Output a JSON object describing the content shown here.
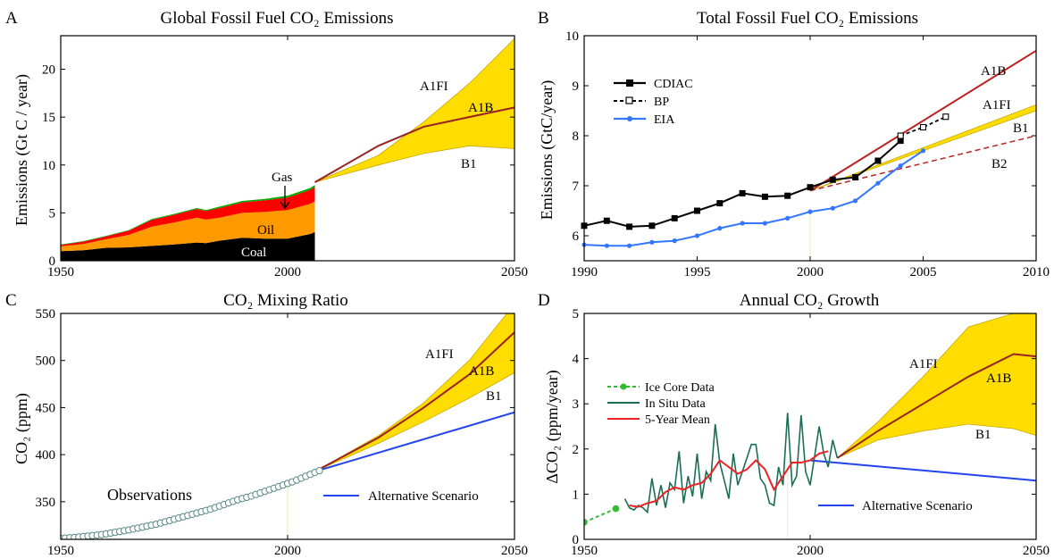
{
  "chart_data": [
    {
      "id": "A",
      "type": "area",
      "panel_letter": "A",
      "title": "Global Fossil Fuel CO₂ Emissions",
      "xlabel": "",
      "ylabel": "Emissions (Gt C / year)",
      "xlim": [
        1950,
        2050
      ],
      "ylim": [
        0,
        23.5
      ],
      "xticks": [
        1950,
        2000,
        2050
      ],
      "yticks": [
        0,
        5,
        10,
        15,
        20
      ],
      "x": [
        1950,
        1955,
        1960,
        1965,
        1970,
        1975,
        1980,
        1982,
        1985,
        1990,
        1995,
        2000,
        2005,
        2006
      ],
      "series": [
        {
          "name": "Coal",
          "color": "#000000",
          "values": [
            1.0,
            1.1,
            1.35,
            1.4,
            1.55,
            1.7,
            1.9,
            1.85,
            2.1,
            2.4,
            2.3,
            2.3,
            2.8,
            3.0
          ]
        },
        {
          "name": "Oil",
          "color": "#ff9900",
          "values": [
            0.5,
            0.65,
            0.9,
            1.3,
            2.0,
            2.3,
            2.6,
            2.45,
            2.4,
            2.6,
            2.8,
            3.0,
            3.15,
            3.2
          ]
        },
        {
          "name": "Gas",
          "color": "#ff0000",
          "values": [
            0.15,
            0.25,
            0.3,
            0.45,
            0.7,
            0.8,
            0.9,
            0.9,
            1.0,
            1.1,
            1.2,
            1.3,
            1.45,
            1.5
          ]
        },
        {
          "name": "",
          "color": "#00aa00",
          "values": [
            0.05,
            0.05,
            0.05,
            0.05,
            0.1,
            0.1,
            0.1,
            0.1,
            0.15,
            0.15,
            0.15,
            0.2,
            0.2,
            0.2
          ]
        }
      ],
      "scenarios": {
        "x": [
          2006,
          2020,
          2030,
          2040,
          2050
        ],
        "A1FI": [
          8.2,
          11.0,
          14.5,
          18.5,
          23.2
        ],
        "A1B": [
          8.2,
          12.0,
          14.0,
          15.0,
          16.0
        ],
        "B1": [
          8.2,
          10.0,
          11.2,
          12.0,
          11.7
        ]
      },
      "labels": {
        "a1fi": "A1FI",
        "a1b": "A1B",
        "b1": "B1",
        "gas": "Gas",
        "oil": "Oil",
        "coal": "Coal"
      }
    },
    {
      "id": "B",
      "type": "line",
      "panel_letter": "B",
      "title": "Total Fossil Fuel CO₂ Emissions",
      "xlabel": "",
      "ylabel": "Emissions (GtC/year)",
      "xlim": [
        1990,
        2010
      ],
      "ylim": [
        5.5,
        10
      ],
      "xticks": [
        1990,
        1995,
        2000,
        2005,
        2010
      ],
      "yticks": [
        6,
        7,
        8,
        9,
        10
      ],
      "series": [
        {
          "name": "CDIAC",
          "color": "#000000",
          "x": [
            1990,
            1991,
            1992,
            1993,
            1994,
            1995,
            1996,
            1997,
            1998,
            1999,
            2000,
            2001,
            2002,
            2003,
            2004
          ],
          "y": [
            6.2,
            6.3,
            6.18,
            6.2,
            6.35,
            6.5,
            6.65,
            6.85,
            6.78,
            6.8,
            6.97,
            7.12,
            7.17,
            7.5,
            7.9
          ]
        },
        {
          "name": "BP",
          "color": "#000000",
          "x": [
            2004,
            2005,
            2006
          ],
          "y": [
            8.0,
            8.17,
            8.38
          ]
        },
        {
          "name": "EIA",
          "color": "#3377ff",
          "x": [
            1990,
            1991,
            1992,
            1993,
            1994,
            1995,
            1996,
            1997,
            1998,
            1999,
            2000,
            2001,
            2002,
            2003,
            2004,
            2005
          ],
          "y": [
            5.82,
            5.8,
            5.8,
            5.87,
            5.9,
            6.0,
            6.15,
            6.25,
            6.25,
            6.35,
            6.48,
            6.55,
            6.7,
            7.05,
            7.4,
            7.7
          ]
        }
      ],
      "scenarios": {
        "x": [
          2000,
          2010
        ],
        "A1B": [
          6.9,
          9.7
        ],
        "A1FI": [
          6.9,
          8.62
        ],
        "B1": [
          6.9,
          8.5
        ],
        "B2": [
          6.9,
          8.0
        ]
      },
      "labels": {
        "a1b": "A1B",
        "a1fi": "A1FI",
        "b1": "B1",
        "b2": "B2"
      }
    },
    {
      "id": "C",
      "type": "line",
      "panel_letter": "C",
      "title": "CO₂ Mixing Ratio",
      "xlabel": "",
      "ylabel": "CO₂ (ppm)",
      "xlim": [
        1950,
        2050
      ],
      "ylim": [
        310,
        550
      ],
      "xticks": [
        1950,
        2000,
        2050
      ],
      "yticks": [
        350,
        400,
        450,
        500,
        550
      ],
      "observations": {
        "x": [
          1950,
          1953,
          1956,
          1959,
          1962,
          1965,
          1968,
          1971,
          1974,
          1977,
          1980,
          1983,
          1986,
          1989,
          1992,
          1995,
          1998,
          2001,
          2004,
          2007
        ],
        "y": [
          311,
          312,
          313.5,
          315,
          317.5,
          320,
          323,
          326,
          330,
          334,
          338,
          342,
          347,
          352,
          356,
          361,
          366,
          371,
          377,
          383
        ]
      },
      "scenarios": {
        "x": [
          2006,
          2020,
          2030,
          2040,
          2050
        ],
        "A1FI": [
          382,
          420,
          455,
          500,
          560
        ],
        "A1B": [
          382,
          418,
          450,
          485,
          530
        ],
        "B1": [
          382,
          412,
          435,
          460,
          487
        ]
      },
      "alternative": {
        "x": [
          2006,
          2050
        ],
        "y": [
          382,
          445
        ]
      },
      "labels": {
        "a1fi": "A1FI",
        "a1b": "A1B",
        "b1": "B1",
        "observations": "Observations",
        "alternative": "Alternative Scenario"
      }
    },
    {
      "id": "D",
      "type": "line",
      "panel_letter": "D",
      "title": "Annual CO₂ Growth",
      "xlabel": "",
      "ylabel": "ΔCO₂ (ppm/year)",
      "xlim": [
        1950,
        2050
      ],
      "ylim": [
        0,
        5
      ],
      "xticks": [
        1950,
        2000,
        2050
      ],
      "yticks": [
        0,
        1,
        2,
        3,
        4,
        5
      ],
      "series": [
        {
          "name": "Ice Core Data",
          "color": "#33bb33",
          "x": [
            1950,
            1954,
            1957
          ],
          "y": [
            0.38,
            0.55,
            0.68
          ]
        },
        {
          "name": "In Situ Data",
          "color": "#1a6e55",
          "x": [
            1959,
            1960,
            1961,
            1962,
            1963,
            1964,
            1965,
            1966,
            1967,
            1968,
            1969,
            1970,
            1971,
            1972,
            1973,
            1974,
            1975,
            1976,
            1977,
            1978,
            1979,
            1980,
            1981,
            1982,
            1983,
            1984,
            1985,
            1986,
            1987,
            1988,
            1989,
            1990,
            1991,
            1992,
            1993,
            1994,
            1995,
            1996,
            1997,
            1998,
            1999,
            2000,
            2001,
            2002,
            2003,
            2004,
            2005,
            2006
          ],
          "y": [
            0.9,
            0.7,
            0.65,
            0.75,
            0.7,
            0.6,
            1.35,
            0.75,
            1.2,
            0.7,
            1.25,
            1.1,
            1.95,
            0.8,
            1.4,
            0.95,
            1.9,
            0.9,
            1.5,
            1.3,
            2.55,
            1.7,
            1.3,
            0.9,
            1.9,
            1.2,
            1.5,
            1.8,
            2.1,
            2.1,
            1.35,
            1.2,
            0.8,
            0.75,
            1.6,
            1.2,
            2.8,
            1.2,
            1.4,
            2.75,
            1.5,
            1.2,
            1.85,
            2.5,
            1.9,
            1.6,
            2.2,
            1.8
          ]
        },
        {
          "name": "5-Year Mean",
          "color": "#ee2222",
          "x": [
            1960,
            1962,
            1964,
            1966,
            1968,
            1970,
            1972,
            1974,
            1976,
            1978,
            1980,
            1982,
            1984,
            1986,
            1988,
            1990,
            1992,
            1994,
            1996,
            1998,
            2000,
            2002,
            2004
          ],
          "y": [
            0.75,
            0.72,
            0.8,
            0.85,
            1.05,
            1.15,
            1.1,
            1.2,
            1.25,
            1.45,
            1.75,
            1.6,
            1.45,
            1.55,
            1.75,
            1.55,
            1.1,
            1.4,
            1.7,
            1.7,
            1.75,
            1.9,
            1.95
          ]
        }
      ],
      "scenarios": {
        "x": [
          2006,
          2015,
          2025,
          2035,
          2045,
          2050
        ],
        "A1FI": [
          1.8,
          2.6,
          3.6,
          4.7,
          5.0,
          5.0
        ],
        "A1B": [
          1.8,
          2.4,
          3.0,
          3.6,
          4.1,
          4.05
        ],
        "B1": [
          1.8,
          2.2,
          2.4,
          2.55,
          2.45,
          2.3
        ]
      },
      "alternative": {
        "x": [
          2000,
          2050
        ],
        "y": [
          1.75,
          1.3
        ]
      },
      "labels": {
        "a1fi": "A1FI",
        "a1b": "A1B",
        "b1": "B1",
        "alternative": "Alternative Scenario"
      }
    }
  ]
}
